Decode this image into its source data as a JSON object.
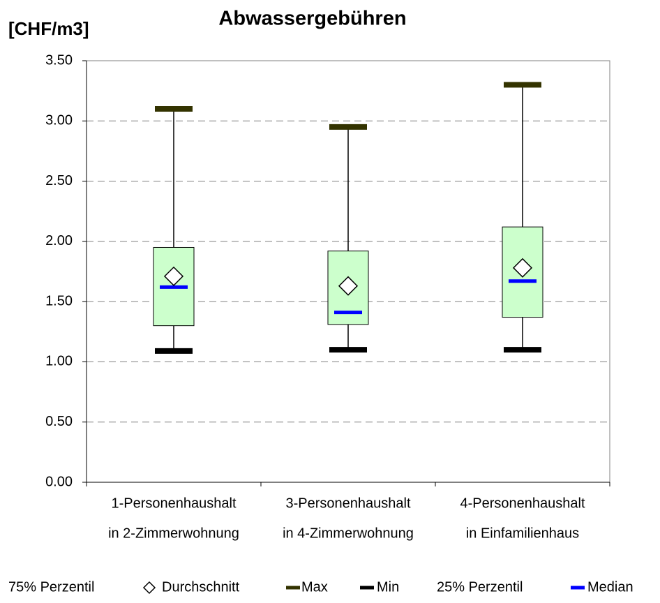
{
  "chart_data": {
    "type": "box",
    "title": "Abwassergebühren",
    "y_label": "[CHF/m3]",
    "categories": [
      [
        "1-Personenhaushalt",
        "in 2-Zimmerwohnung"
      ],
      [
        "3-Personenhaushalt",
        "in 4-Zimmerwohnung"
      ],
      [
        "4-Personenhaushalt",
        "in Einfamilienhaus"
      ]
    ],
    "series": [
      {
        "name": "75% Perzentil",
        "color": "#ccffcc",
        "values": [
          1.95,
          1.92,
          2.12
        ]
      },
      {
        "name": "Durchschnitt",
        "color": "#ffffff",
        "values": [
          1.71,
          1.63,
          1.78
        ]
      },
      {
        "name": "Max",
        "color": "#333300",
        "values": [
          3.1,
          2.95,
          3.3
        ]
      },
      {
        "name": "Min",
        "color": "#000000",
        "values": [
          1.09,
          1.1,
          1.1
        ]
      },
      {
        "name": "25% Perzentil",
        "color": "#ccffcc",
        "values": [
          1.3,
          1.31,
          1.37
        ]
      },
      {
        "name": "Median",
        "color": "#0000ff",
        "values": [
          1.62,
          1.41,
          1.67
        ]
      }
    ],
    "ylim": [
      0,
      3.5
    ],
    "yticks": [
      {
        "value": 0,
        "label": "0.00"
      },
      {
        "value": 0.5,
        "label": "0.50"
      },
      {
        "value": 1,
        "label": "1.00"
      },
      {
        "value": 1.5,
        "label": "1.50"
      },
      {
        "value": 2,
        "label": "2.00"
      },
      {
        "value": 2.5,
        "label": "2.50"
      },
      {
        "value": 3,
        "label": "3.00"
      },
      {
        "value": 3.5,
        "label": "3.50"
      }
    ],
    "grid": true
  }
}
